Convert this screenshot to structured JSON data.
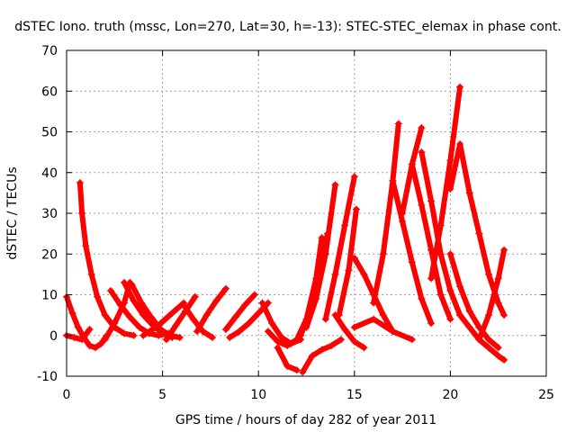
{
  "chart_data": {
    "type": "scatter",
    "title": "dSTEC Iono. truth (mssc, Lon=270, Lat=30, h=-13): STEC-STEC_elemax in phase cont.",
    "xlabel": "GPS time / hours of day 282 of year 2011",
    "ylabel": "dSTEC  / TECUs",
    "xlim": [
      0,
      25
    ],
    "ylim": [
      -10,
      70
    ],
    "xticks": [
      0,
      5,
      10,
      15,
      20,
      25
    ],
    "yticks": [
      -10,
      0,
      10,
      20,
      30,
      40,
      50,
      60,
      70
    ],
    "grid": true,
    "marker": "+",
    "color": "#ff0000",
    "series": [
      {
        "x": [
          0.0,
          0.3,
          0.6,
          0.9,
          1.2,
          1.5,
          1.8,
          2.1
        ],
        "y": [
          9.5,
          5.5,
          2.0,
          -0.5,
          -2.5,
          -3.0,
          -2.0,
          0.0
        ]
      },
      {
        "x": [
          0.0,
          0.4,
          0.8,
          1.2
        ],
        "y": [
          0.0,
          -0.5,
          -1.0,
          1.5
        ]
      },
      {
        "x": [
          0.7,
          0.8,
          1.0,
          1.3,
          1.6,
          2.0,
          2.5,
          3.0,
          3.5
        ],
        "y": [
          37.5,
          30.0,
          22.0,
          15.0,
          9.5,
          5.0,
          2.0,
          0.5,
          0.0
        ]
      },
      {
        "x": [
          2.3,
          2.8,
          3.3,
          3.8,
          4.3,
          4.8,
          5.3
        ],
        "y": [
          11.0,
          7.5,
          4.5,
          2.0,
          0.5,
          0.0,
          0.5
        ]
      },
      {
        "x": [
          2.0,
          2.5,
          3.0,
          3.3
        ],
        "y": [
          -1.0,
          3.0,
          8.0,
          13.0
        ]
      },
      {
        "x": [
          3.0,
          3.5,
          4.0,
          4.5,
          5.0,
          5.5
        ],
        "y": [
          13.0,
          8.5,
          5.0,
          2.5,
          0.5,
          -0.5
        ]
      },
      {
        "x": [
          3.4,
          3.9,
          4.4,
          4.9,
          5.4,
          5.9
        ],
        "y": [
          12.5,
          8.0,
          4.5,
          1.5,
          0.0,
          -0.5
        ]
      },
      {
        "x": [
          4.0,
          4.8,
          5.5,
          6.1
        ],
        "y": [
          0.0,
          2.5,
          5.5,
          8.0
        ]
      },
      {
        "x": [
          5.2,
          5.7,
          6.2,
          6.7
        ],
        "y": [
          -1.0,
          2.5,
          6.0,
          9.5
        ]
      },
      {
        "x": [
          6.1,
          6.6,
          7.1,
          7.6
        ],
        "y": [
          7.5,
          4.0,
          1.0,
          -0.5
        ]
      },
      {
        "x": [
          6.8,
          7.3,
          7.8,
          8.3
        ],
        "y": [
          1.0,
          5.0,
          8.5,
          11.5
        ]
      },
      {
        "x": [
          8.3,
          8.8,
          9.3,
          9.8
        ],
        "y": [
          1.5,
          4.5,
          7.5,
          10.0
        ]
      },
      {
        "x": [
          8.5,
          9.0,
          9.5,
          10.0,
          10.5
        ],
        "y": [
          -0.5,
          1.0,
          3.0,
          5.5,
          8.0
        ]
      },
      {
        "x": [
          10.2,
          10.7,
          11.2,
          11.7,
          12.2
        ],
        "y": [
          8.0,
          3.0,
          -0.5,
          -2.0,
          -1.0
        ]
      },
      {
        "x": [
          10.5,
          11.0,
          11.5,
          12.0
        ],
        "y": [
          1.0,
          -1.5,
          -2.5,
          -1.0
        ]
      },
      {
        "x": [
          11.0,
          11.5,
          12.0
        ],
        "y": [
          -3.0,
          -7.5,
          -8.5
        ]
      },
      {
        "x": [
          12.0,
          12.5,
          13.0,
          13.3
        ],
        "y": [
          -1.0,
          4.0,
          14.0,
          24.0
        ]
      },
      {
        "x": [
          12.2,
          12.7,
          13.2,
          13.6
        ],
        "y": [
          0.0,
          6.0,
          16.0,
          25.0
        ]
      },
      {
        "x": [
          12.5,
          13.0,
          13.5,
          14.0
        ],
        "y": [
          2.0,
          9.0,
          20.0,
          37.0
        ]
      },
      {
        "x": [
          12.3,
          12.8,
          13.3,
          13.8,
          14.3
        ],
        "y": [
          -9.0,
          -5.0,
          -3.5,
          -2.5,
          -1.0
        ]
      },
      {
        "x": [
          13.5,
          14.0,
          14.5,
          15.0
        ],
        "y": [
          4.0,
          15.0,
          27.0,
          39.0
        ]
      },
      {
        "x": [
          14.2,
          14.7,
          15.1
        ],
        "y": [
          5.0,
          16.0,
          31.0
        ]
      },
      {
        "x": [
          14.0,
          14.5,
          15.0,
          15.5
        ],
        "y": [
          5.0,
          1.5,
          -1.5,
          -3.0
        ]
      },
      {
        "x": [
          15.0,
          15.5,
          16.0,
          16.5,
          17.0
        ],
        "y": [
          19.0,
          15.0,
          10.0,
          5.0,
          1.0
        ]
      },
      {
        "x": [
          15.0,
          16.0,
          17.0,
          18.0
        ],
        "y": [
          2.0,
          4.0,
          1.0,
          -1.0
        ]
      },
      {
        "x": [
          16.0,
          16.5,
          17.0,
          17.3
        ],
        "y": [
          8.0,
          20.0,
          38.0,
          52.0
        ]
      },
      {
        "x": [
          17.0,
          17.5,
          18.0,
          18.5,
          19.0
        ],
        "y": [
          38.0,
          28.0,
          18.0,
          9.0,
          3.0
        ]
      },
      {
        "x": [
          17.5,
          18.0,
          18.5
        ],
        "y": [
          30.0,
          42.0,
          51.0
        ]
      },
      {
        "x": [
          18.0,
          18.5,
          19.0,
          19.5,
          20.0
        ],
        "y": [
          42.0,
          32.0,
          21.0,
          10.0,
          4.0
        ]
      },
      {
        "x": [
          18.5,
          19.0,
          19.5,
          20.0,
          20.5
        ],
        "y": [
          45.0,
          33.0,
          20.0,
          11.0,
          5.0
        ]
      },
      {
        "x": [
          19.0,
          19.5,
          20.0,
          20.5
        ],
        "y": [
          14.0,
          27.0,
          43.0,
          61.0
        ]
      },
      {
        "x": [
          20.0,
          20.5,
          21.0
        ],
        "y": [
          36.0,
          47.0,
          35.0
        ]
      },
      {
        "x": [
          20.0,
          20.5,
          21.0,
          21.5,
          22.0,
          22.5
        ],
        "y": [
          20.0,
          12.0,
          6.0,
          2.0,
          -1.0,
          -3.0
        ]
      },
      {
        "x": [
          21.0,
          21.5,
          22.0,
          22.5,
          22.8
        ],
        "y": [
          35.0,
          25.0,
          15.0,
          8.0,
          5.0
        ]
      },
      {
        "x": [
          21.5,
          22.0,
          22.5,
          22.8
        ],
        "y": [
          -1.0,
          5.0,
          14.0,
          21.0
        ]
      },
      {
        "x": [
          20.5,
          21.0,
          21.5,
          22.0,
          22.5,
          22.8
        ],
        "y": [
          5.0,
          2.0,
          -1.0,
          -3.0,
          -5.0,
          -6.0
        ]
      }
    ]
  }
}
